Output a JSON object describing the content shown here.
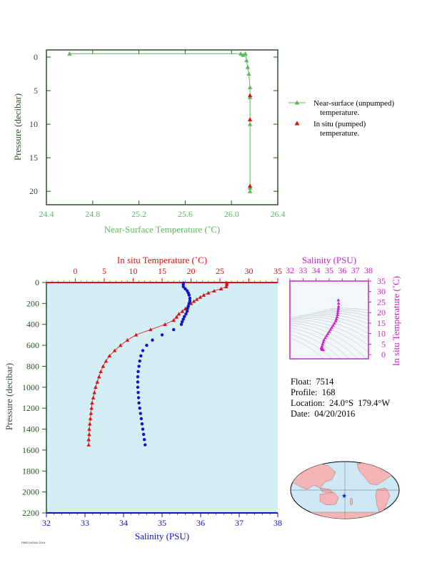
{
  "info": {
    "float": "Float:  7514",
    "profile": "Profile:  168",
    "location": "Location:  24.0°S  179.4°W",
    "date": "Date:  04/20/2016"
  },
  "footer_code": "PMEL/NOAA 2016",
  "colors": {
    "green": "#5cb85c",
    "red": "#dd1111",
    "blue": "#1111cc",
    "magenta": "#cc22cc",
    "axis_dark": "#2f4f2f",
    "plot_bg": "#d4eef6",
    "land": "#f5b5b5",
    "ocean": "#cfe8f5"
  },
  "chart_data": [
    {
      "id": "near-surface",
      "type": "line",
      "xlabel": "Near-Surface Temperature (˚C)",
      "ylabel": "Pressure (decibar)",
      "xlim": [
        24.4,
        26.4
      ],
      "ylim": [
        0,
        22
      ],
      "x_ticks": [
        "24.4",
        "24.8",
        "25.2",
        "25.6",
        "26.0",
        "26.4"
      ],
      "y_ticks": [
        "0",
        "5",
        "10",
        "15",
        "20"
      ],
      "legend": [
        {
          "line1": "Near-surface (unpumped)",
          "line2": "temperature."
        },
        {
          "line1": "In situ (pumped)",
          "line2": "temperature."
        }
      ],
      "series": [
        {
          "name": "Near-surface (unpumped) temperature.",
          "points": [
            [
              24.6,
              -0.5
            ],
            [
              26.08,
              -0.5
            ],
            [
              26.1,
              -0.3
            ],
            [
              26.12,
              -0.5
            ],
            [
              26.13,
              0.5
            ],
            [
              26.14,
              1.5
            ],
            [
              26.15,
              2.5
            ],
            [
              26.16,
              4.5
            ],
            [
              26.16,
              6.0
            ],
            [
              26.16,
              10.0
            ],
            [
              26.16,
              19.5
            ],
            [
              26.16,
              20.0
            ]
          ]
        },
        {
          "name": "In situ (pumped) temperature.",
          "points": [
            [
              26.16,
              5.7
            ],
            [
              26.16,
              9.3
            ],
            [
              26.16,
              19.2
            ]
          ]
        }
      ]
    },
    {
      "id": "profile",
      "type": "line",
      "ylabel": "Pressure (decibar)",
      "top_label": "In situ Temperature (˚C)",
      "bottom_label": "Salinity (PSU)",
      "temp_lim": [
        -5,
        35
      ],
      "sal_lim": [
        32,
        38
      ],
      "ylim": [
        0,
        2200
      ],
      "temp_ticks": [
        "0",
        "5",
        "10",
        "15",
        "20",
        "25",
        "30",
        "35"
      ],
      "sal_ticks": [
        "32",
        "33",
        "34",
        "35",
        "36",
        "37",
        "38"
      ],
      "y_ticks": [
        "0",
        "200",
        "400",
        "600",
        "800",
        "1000",
        "1200",
        "1400",
        "1600",
        "1800",
        "2000",
        "2200"
      ],
      "series": [
        {
          "name": "In situ Temperature",
          "points": [
            [
              26.2,
              5
            ],
            [
              26.2,
              20
            ],
            [
              26.1,
              40
            ],
            [
              25.2,
              60
            ],
            [
              24.0,
              80
            ],
            [
              23.0,
              100
            ],
            [
              22.2,
              120
            ],
            [
              21.6,
              140
            ],
            [
              21.0,
              160
            ],
            [
              20.5,
              180
            ],
            [
              20.0,
              200
            ],
            [
              19.5,
              225
            ],
            [
              19.0,
              250
            ],
            [
              18.5,
              275
            ],
            [
              17.9,
              300
            ],
            [
              17.5,
              330
            ],
            [
              17.0,
              360
            ],
            [
              15.5,
              400
            ],
            [
              13.0,
              450
            ],
            [
              10.5,
              500
            ],
            [
              9.0,
              550
            ],
            [
              7.8,
              600
            ],
            [
              6.8,
              650
            ],
            [
              5.9,
              700
            ],
            [
              5.3,
              750
            ],
            [
              4.8,
              800
            ],
            [
              4.4,
              850
            ],
            [
              4.1,
              900
            ],
            [
              3.8,
              950
            ],
            [
              3.5,
              1000
            ],
            [
              3.3,
              1050
            ],
            [
              3.1,
              1100
            ],
            [
              2.9,
              1150
            ],
            [
              2.8,
              1200
            ],
            [
              2.7,
              1250
            ],
            [
              2.6,
              1300
            ],
            [
              2.5,
              1350
            ],
            [
              2.4,
              1400
            ],
            [
              2.4,
              1450
            ],
            [
              2.3,
              1500
            ],
            [
              2.3,
              1550
            ]
          ]
        },
        {
          "name": "Salinity",
          "points": [
            [
              35.55,
              5
            ],
            [
              35.55,
              20
            ],
            [
              35.55,
              40
            ],
            [
              35.6,
              60
            ],
            [
              35.65,
              80
            ],
            [
              35.68,
              100
            ],
            [
              35.7,
              120
            ],
            [
              35.72,
              150
            ],
            [
              35.72,
              175
            ],
            [
              35.7,
              200
            ],
            [
              35.68,
              225
            ],
            [
              35.66,
              250
            ],
            [
              35.65,
              275
            ],
            [
              35.62,
              300
            ],
            [
              35.58,
              325
            ],
            [
              35.55,
              350
            ],
            [
              35.52,
              375
            ],
            [
              35.5,
              400
            ],
            [
              35.3,
              450
            ],
            [
              35.0,
              500
            ],
            [
              34.75,
              550
            ],
            [
              34.6,
              600
            ],
            [
              34.5,
              650
            ],
            [
              34.45,
              700
            ],
            [
              34.42,
              750
            ],
            [
              34.4,
              800
            ],
            [
              34.38,
              850
            ],
            [
              34.37,
              900
            ],
            [
              34.37,
              950
            ],
            [
              34.37,
              1000
            ],
            [
              34.38,
              1050
            ],
            [
              34.39,
              1100
            ],
            [
              34.4,
              1150
            ],
            [
              34.42,
              1200
            ],
            [
              34.44,
              1250
            ],
            [
              34.46,
              1300
            ],
            [
              34.48,
              1350
            ],
            [
              34.5,
              1400
            ],
            [
              34.52,
              1450
            ],
            [
              34.54,
              1500
            ],
            [
              34.56,
              1550
            ]
          ]
        }
      ]
    },
    {
      "id": "ts",
      "type": "scatter",
      "top_label": "Salinity (PSU)",
      "right_label": "In situ Temperature (˚C)",
      "sal_lim": [
        32,
        38
      ],
      "temp_lim": [
        -2,
        35
      ],
      "sal_ticks": [
        "32",
        "33",
        "34",
        "35",
        "36",
        "37",
        "38"
      ],
      "temp_ticks": [
        "0",
        "5",
        "10",
        "15",
        "20",
        "25",
        "30",
        "35"
      ],
      "points": [
        [
          35.7,
          26
        ],
        [
          35.72,
          24.5
        ],
        [
          35.72,
          23
        ],
        [
          35.7,
          22
        ],
        [
          35.68,
          21
        ],
        [
          35.66,
          20
        ],
        [
          35.64,
          19
        ],
        [
          35.6,
          18
        ],
        [
          35.55,
          17
        ],
        [
          35.5,
          16
        ],
        [
          35.4,
          15
        ],
        [
          35.3,
          14
        ],
        [
          35.2,
          13
        ],
        [
          35.1,
          12
        ],
        [
          35.0,
          11
        ],
        [
          34.9,
          10
        ],
        [
          34.8,
          9
        ],
        [
          34.7,
          8
        ],
        [
          34.6,
          7
        ],
        [
          34.55,
          6
        ],
        [
          34.5,
          5
        ],
        [
          34.45,
          4
        ],
        [
          34.42,
          3.5
        ],
        [
          34.4,
          3
        ],
        [
          34.45,
          2.6
        ],
        [
          34.5,
          2.4
        ],
        [
          34.55,
          2.3
        ]
      ]
    }
  ]
}
